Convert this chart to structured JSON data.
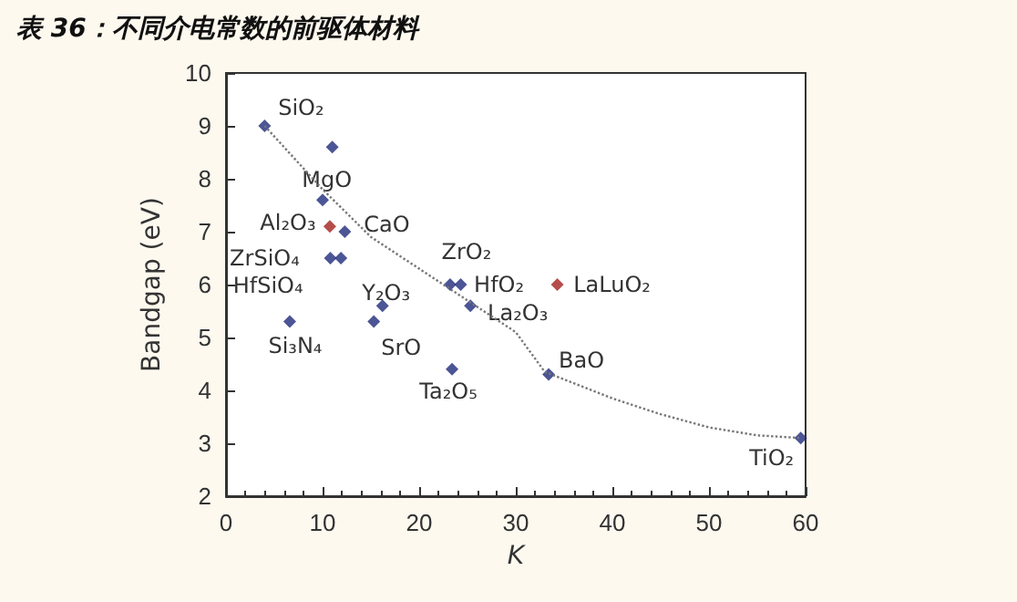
{
  "chart_data": {
    "type": "scatter",
    "title": "表 36：不同介电常数的前驱体材料",
    "xlabel": "K",
    "ylabel": "Bandgap (eV)",
    "xlim": [
      0,
      60
    ],
    "xticks": [
      0,
      10,
      20,
      30,
      40,
      50,
      60
    ],
    "ylim": [
      2,
      10
    ],
    "yticks": [
      2,
      3,
      4,
      5,
      6,
      7,
      8,
      9,
      10
    ],
    "grid": false,
    "marker": "diamond",
    "series": [
      {
        "color": "#1f2a7a",
        "x": [
          4,
          11,
          10,
          12.3,
          10.8,
          11.9,
          6.6,
          16.2,
          15.3,
          23.4,
          23.2,
          24.3,
          25.3,
          33.4,
          59.5
        ],
        "values": [
          9.0,
          8.6,
          7.6,
          7.0,
          6.5,
          6.5,
          5.3,
          5.6,
          5.3,
          4.4,
          6.0,
          6.0,
          5.6,
          4.3,
          3.1
        ]
      },
      {
        "color": "#a3201e",
        "x": [
          10.75,
          34.3
        ],
        "values": [
          7.1,
          6.0
        ]
      },
      {
        "type": "line",
        "color": "#777777",
        "line_style": "dotted",
        "marker": "none",
        "x": [
          4,
          10,
          15,
          20,
          25,
          30,
          33,
          40,
          45,
          50,
          55,
          59.5
        ],
        "values": [
          9.0,
          7.8,
          6.9,
          6.3,
          5.7,
          5.1,
          4.35,
          3.85,
          3.55,
          3.3,
          3.15,
          3.1
        ]
      }
    ],
    "annotations": [
      {
        "text": "SiO₂",
        "x": 4,
        "y": 9.0
      },
      {
        "text": "MgO",
        "x": 11,
        "y": 8.6
      },
      {
        "text": "Al₂O₃",
        "x": 10.75,
        "y": 7.1
      },
      {
        "text": "CaO",
        "x": 12.3,
        "y": 7.0
      },
      {
        "text": "ZrSiO₄",
        "x": 10.8,
        "y": 6.5
      },
      {
        "text": "HfSiO₄",
        "x": 11.9,
        "y": 6.5
      },
      {
        "text": "Y₂O₃",
        "x": 16.2,
        "y": 5.6
      },
      {
        "text": "SrO",
        "x": 15.3,
        "y": 5.3
      },
      {
        "text": "Si₃N₄",
        "x": 6.6,
        "y": 5.3
      },
      {
        "text": "Ta₂O₅",
        "x": 23.4,
        "y": 4.4
      },
      {
        "text": "ZrO₂",
        "x": 23.2,
        "y": 6.0
      },
      {
        "text": "HfO₂",
        "x": 24.3,
        "y": 6.0
      },
      {
        "text": "La₂O₃",
        "x": 25.3,
        "y": 5.6
      },
      {
        "text": "LaLuO₂",
        "x": 34.3,
        "y": 6.0
      },
      {
        "text": "BaO",
        "x": 33.4,
        "y": 4.3
      },
      {
        "text": "TiO₂",
        "x": 59.5,
        "y": 3.1
      }
    ]
  }
}
